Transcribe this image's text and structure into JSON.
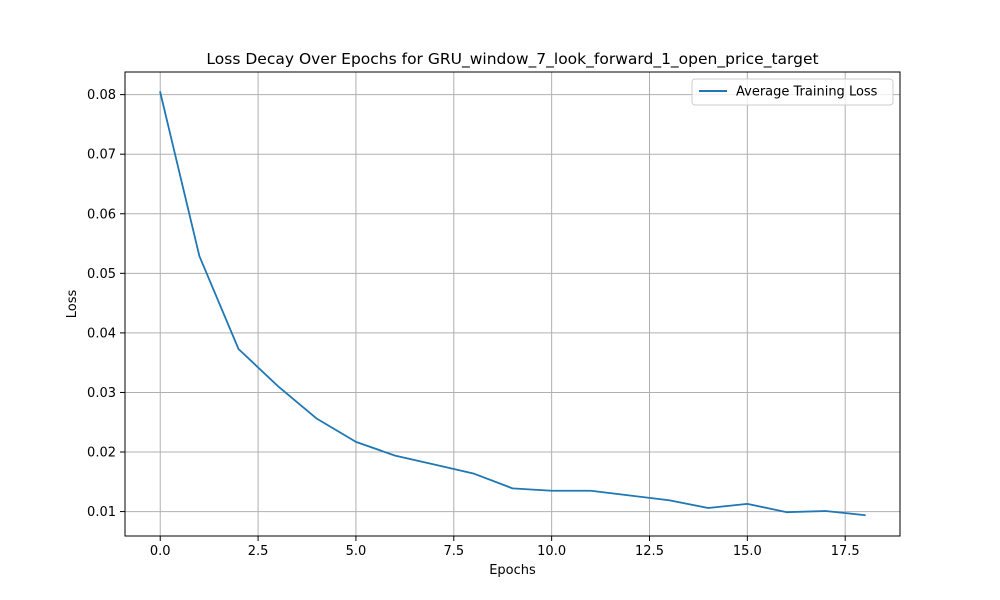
{
  "chart_data": {
    "type": "line",
    "title": "Loss Decay Over Epochs for GRU_window_7_look_forward_1_open_price_target",
    "xlabel": "Epochs",
    "ylabel": "Loss",
    "xlim": [
      -0.9,
      18.9
    ],
    "ylim": [
      0.0059,
      0.0838
    ],
    "xticks": [
      0.0,
      2.5,
      5.0,
      7.5,
      10.0,
      12.5,
      15.0,
      17.5
    ],
    "xtick_labels": [
      "0.0",
      "2.5",
      "5.0",
      "7.5",
      "10.0",
      "12.5",
      "15.0",
      "17.5"
    ],
    "yticks": [
      0.01,
      0.02,
      0.03,
      0.04,
      0.05,
      0.06,
      0.07,
      0.08
    ],
    "ytick_labels": [
      "0.01",
      "0.02",
      "0.03",
      "0.04",
      "0.05",
      "0.06",
      "0.07",
      "0.08"
    ],
    "grid": true,
    "legend_position": "top-right",
    "series": [
      {
        "name": "Average Training Loss",
        "color": "#1f77b4",
        "x": [
          0,
          1,
          2,
          3,
          4,
          5,
          6,
          7,
          8,
          9,
          10,
          11,
          12,
          13,
          14,
          15,
          16,
          17,
          18
        ],
        "y": [
          0.0804,
          0.0529,
          0.0373,
          0.0311,
          0.0256,
          0.0217,
          0.0194,
          0.0179,
          0.0164,
          0.0139,
          0.0135,
          0.0135,
          0.0127,
          0.0119,
          0.0106,
          0.0113,
          0.0099,
          0.0101,
          0.0094
        ]
      }
    ]
  }
}
